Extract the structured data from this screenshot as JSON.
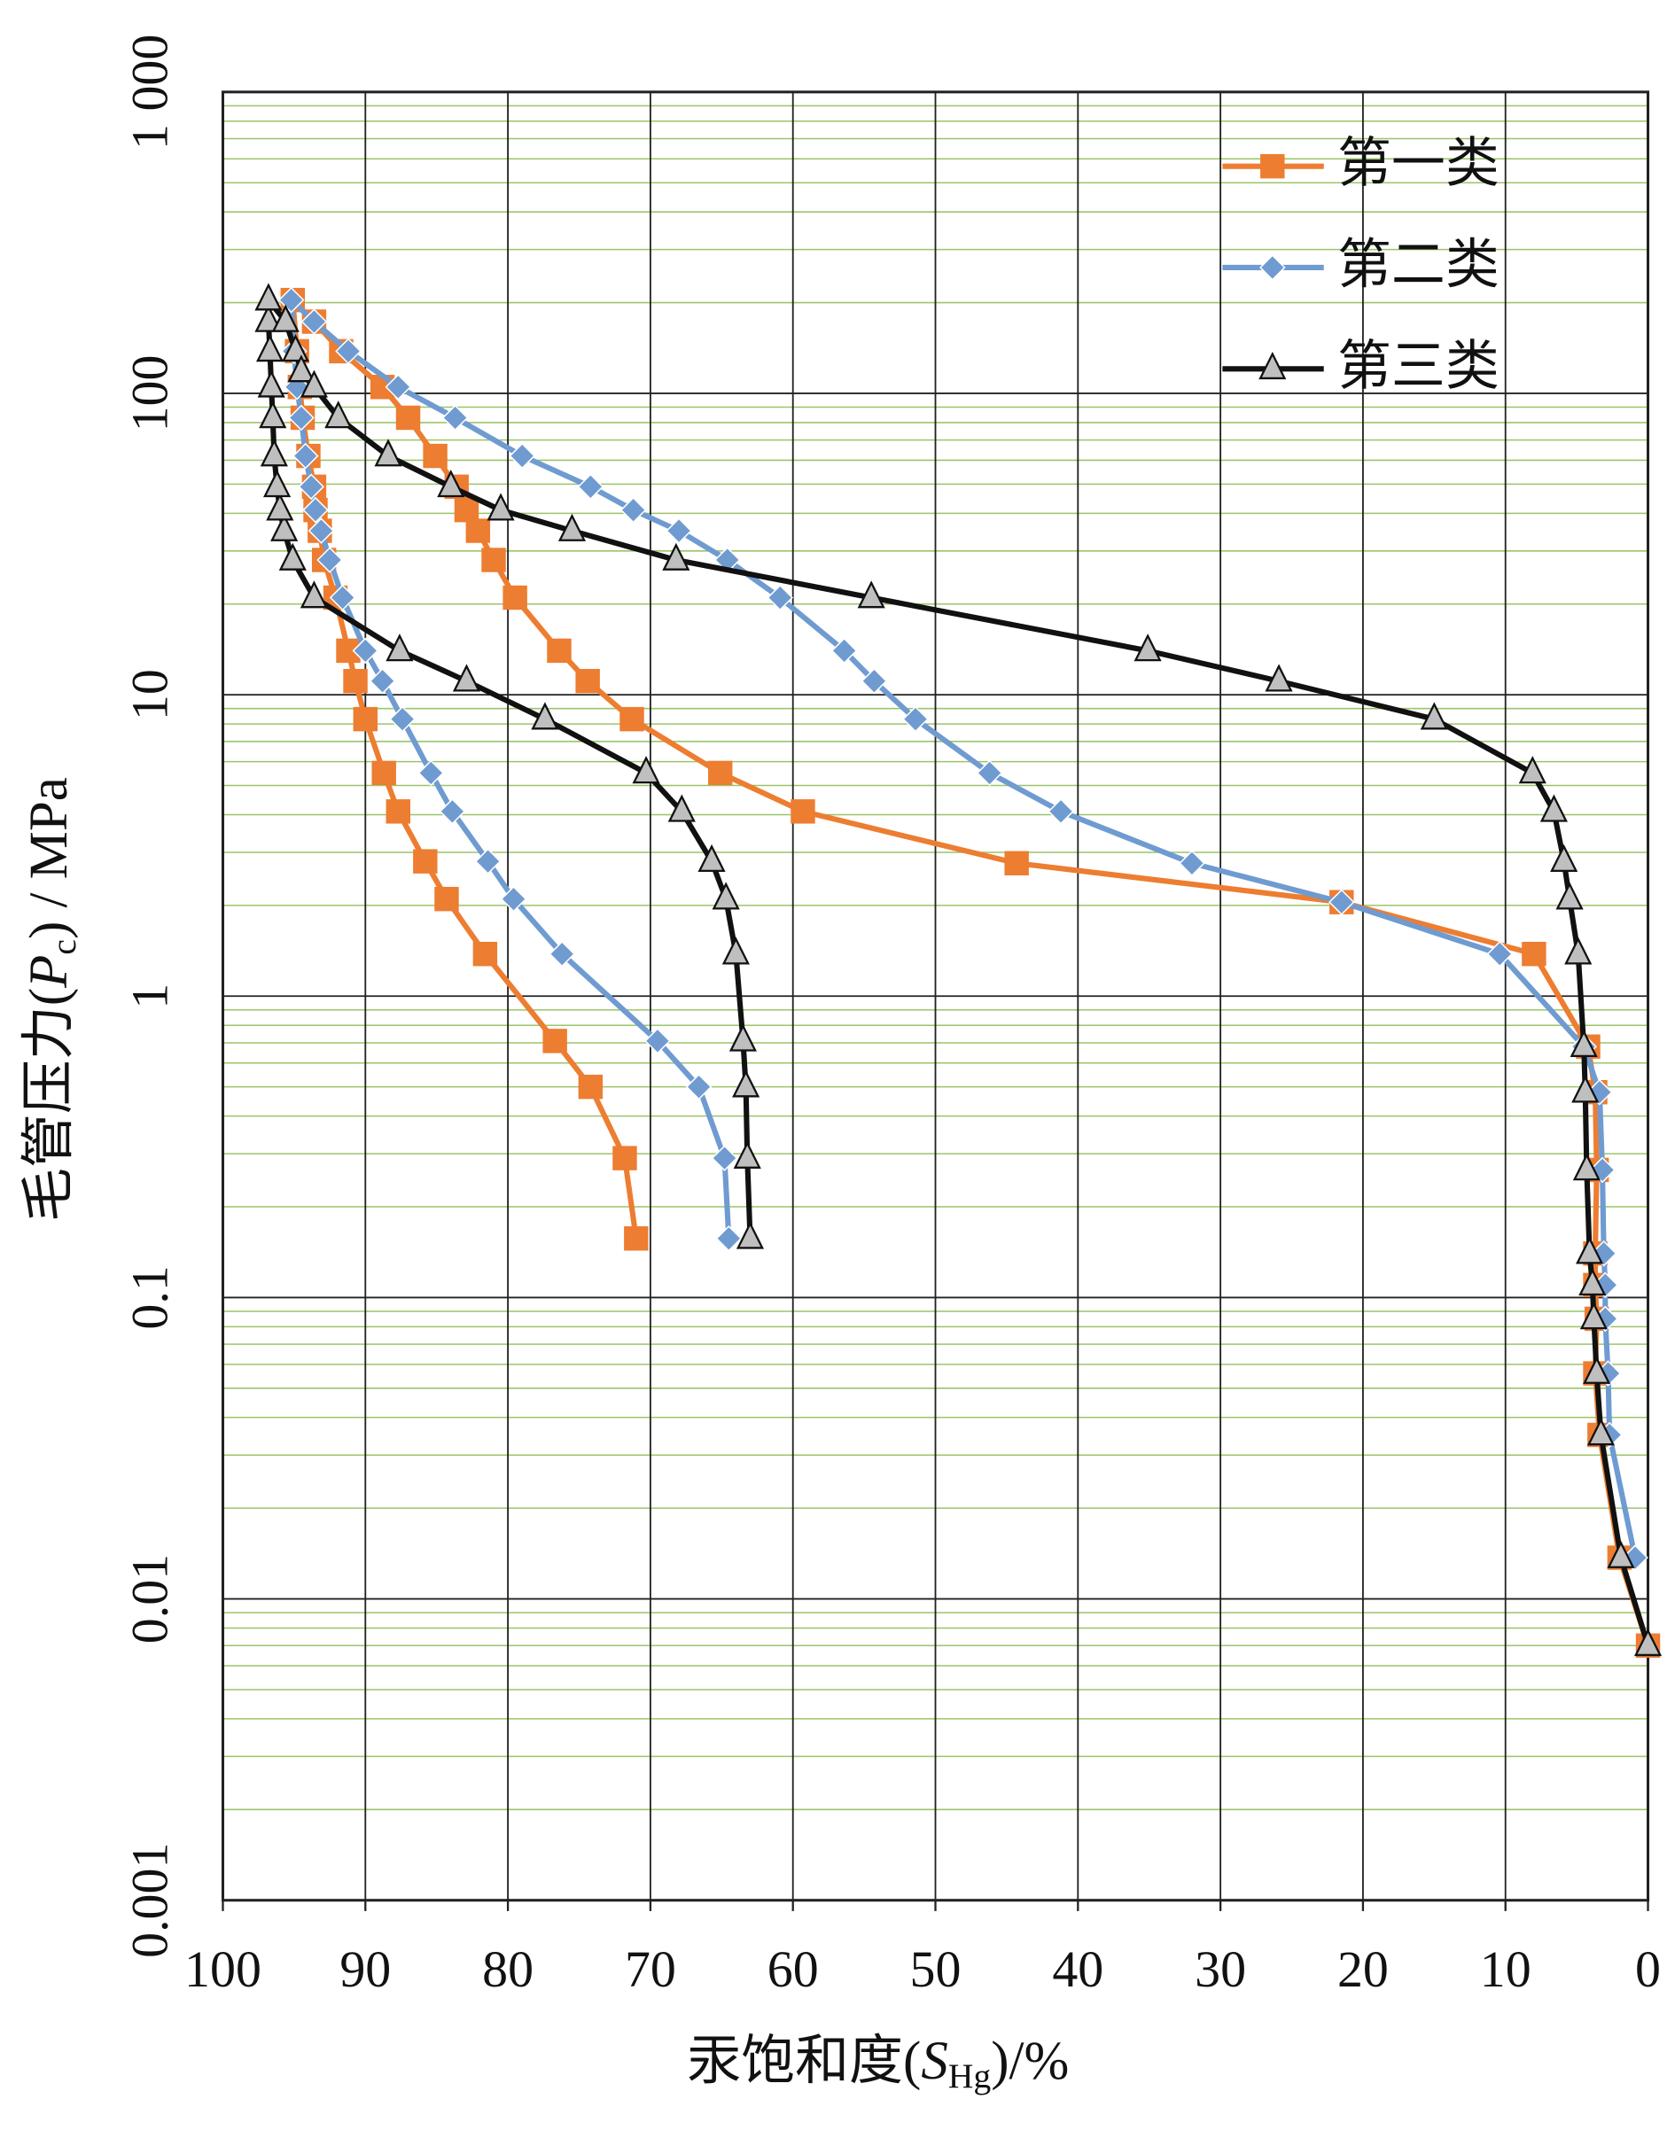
{
  "chart_data": {
    "type": "line",
    "xlabel": [
      "汞饱和度(",
      "S",
      "Hg",
      ")/%"
    ],
    "ylabel": [
      "毛管压力(",
      "P",
      "c",
      ") / MPa"
    ],
    "xlim": [
      100,
      0
    ],
    "xticks": [
      100,
      90,
      80,
      70,
      60,
      50,
      40,
      30,
      20,
      10,
      0
    ],
    "ylim": [
      0.001,
      1000
    ],
    "yticks": [
      0.001,
      0.01,
      0.1,
      1,
      10,
      100,
      {
        "value": 1000,
        "label": "1 000"
      }
    ],
    "log_y": true,
    "grid": true,
    "minor_grid": true,
    "minor_grid_color": "#9bc46a",
    "legend": "upper right",
    "series": [
      {
        "name": "第一类",
        "color": "#ed7d31",
        "marker": "square",
        "x": [
          71.0,
          71.8,
          74.2,
          76.7,
          81.6,
          84.3,
          85.8,
          87.7,
          88.7,
          90.0,
          90.7,
          91.2,
          92.1,
          92.9,
          93.2,
          93.5,
          93.6,
          94.0,
          94.4,
          94.6,
          94.8,
          95.1,
          93.6,
          91.7,
          88.8,
          87.0,
          85.1,
          83.6,
          82.9,
          82.1,
          81.0,
          79.5,
          76.4,
          74.4,
          71.3,
          65.1,
          59.3,
          44.3,
          21.5,
          8.0,
          4.2,
          3.7,
          3.6,
          3.7,
          3.7,
          3.6,
          3.7,
          3.4,
          2.0,
          0
        ],
        "values": [
          0.157,
          0.29,
          0.5,
          0.71,
          1.38,
          2.1,
          2.8,
          4.1,
          5.5,
          8.3,
          11.1,
          14,
          21,
          28,
          35,
          41,
          49,
          62,
          83,
          105,
          138,
          204,
          173,
          138,
          105,
          83,
          62,
          49,
          41,
          35,
          28,
          21,
          14,
          11.1,
          8.3,
          5.5,
          4.1,
          2.76,
          2.05,
          1.38,
          0.68,
          0.48,
          0.265,
          0.14,
          0.11,
          0.085,
          0.056,
          0.035,
          0.0137,
          0.007
        ]
      },
      {
        "name": "第二类",
        "color": "#6f9bd1",
        "marker": "diamond",
        "x": [
          64.5,
          64.8,
          66.6,
          69.5,
          76.2,
          79.6,
          81.4,
          83.9,
          85.4,
          87.4,
          88.8,
          90.0,
          91.6,
          92.5,
          93.1,
          93.5,
          93.8,
          94.2,
          94.5,
          94.8,
          95.0,
          95.2,
          93.6,
          91.2,
          87.7,
          83.7,
          79.0,
          74.2,
          71.2,
          68.0,
          64.6,
          60.9,
          56.4,
          54.3,
          51.4,
          46.2,
          41.2,
          32.0,
          21.5,
          10.4,
          4.5,
          3.4,
          3.2,
          3.1,
          3.0,
          3.0,
          2.8,
          2.7,
          0.9
        ],
        "values": [
          0.157,
          0.29,
          0.5,
          0.71,
          1.38,
          2.1,
          2.8,
          4.1,
          5.5,
          8.3,
          11.1,
          14,
          21,
          28,
          35,
          41,
          49,
          62,
          83,
          105,
          138,
          204,
          173,
          138,
          105,
          83,
          62,
          49,
          41,
          35,
          28,
          21,
          14,
          11.1,
          8.3,
          5.5,
          4.1,
          2.76,
          2.05,
          1.38,
          0.68,
          0.48,
          0.265,
          0.14,
          0.11,
          0.085,
          0.056,
          0.035,
          0.0137
        ]
      },
      {
        "name": "第三类",
        "color": "#111111",
        "marker": "triangle",
        "marker_fill": "#bfbfbf",
        "x": [
          63.0,
          63.2,
          63.3,
          63.5,
          64.0,
          64.7,
          65.7,
          67.8,
          70.3,
          77.4,
          82.9,
          87.6,
          93.6,
          95.1,
          95.7,
          96.0,
          96.2,
          96.4,
          96.5,
          96.6,
          96.7,
          96.8,
          96.8,
          95.6,
          94.9,
          94.5,
          93.6,
          91.9,
          88.4,
          84.0,
          80.5,
          75.5,
          68.2,
          54.5,
          35.1,
          25.9,
          15.0,
          8.1,
          6.6,
          5.9,
          5.5,
          4.9,
          4.5,
          4.4,
          4.3,
          4.1,
          3.9,
          3.8,
          3.6,
          3.3,
          1.9,
          0
        ],
        "values": [
          0.157,
          0.29,
          0.5,
          0.71,
          1.38,
          2.1,
          2.8,
          4.1,
          5.5,
          8.3,
          11.1,
          14,
          21,
          28,
          35,
          41,
          49,
          62,
          83,
          105,
          138,
          173,
          204,
          173,
          138,
          118,
          105,
          83,
          62,
          49,
          41,
          35,
          28,
          21,
          14,
          11.1,
          8.3,
          5.5,
          4.1,
          2.8,
          2.1,
          1.38,
          0.68,
          0.48,
          0.265,
          0.14,
          0.11,
          0.085,
          0.056,
          0.035,
          0.0137,
          0.007
        ]
      }
    ]
  }
}
